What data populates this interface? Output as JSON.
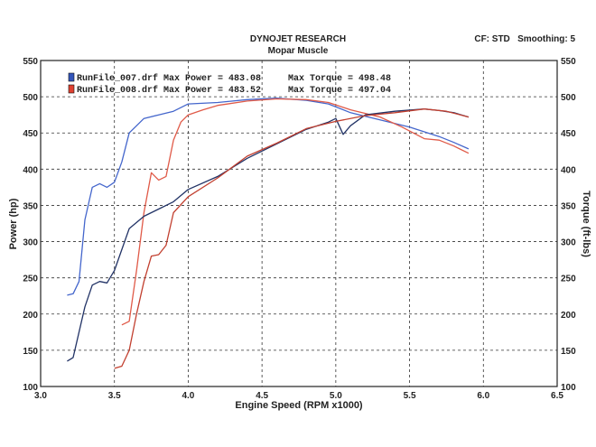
{
  "chart_data": {
    "type": "line",
    "title": "DYNOJET RESEARCH",
    "subtitle": "Mopar Muscle",
    "header_right": "CF: STD   Smoothing: 5",
    "xlabel": "Engine Speed (RPM x1000)",
    "ylabel_left": "Power (hp)",
    "ylabel_right": "Torque (ft-lbs)",
    "xlim": [
      3.0,
      6.5
    ],
    "ylim": [
      100,
      550
    ],
    "x_ticks": [
      "3.0",
      "3.5",
      "4.0",
      "4.5",
      "5.0",
      "5.5",
      "6.0",
      "6.5"
    ],
    "y_ticks": [
      "100",
      "150",
      "200",
      "250",
      "300",
      "350",
      "400",
      "450",
      "500",
      "550"
    ],
    "grid": "dashed",
    "legend": [
      {
        "label": "RunFile_007.drf Max Power = 483.08     Max Torque = 498.48",
        "color": "#3355bb"
      },
      {
        "label": "RunFile_008.drf Max Power = 483.52     Max Torque = 497.04",
        "color": "#e04030"
      }
    ],
    "series": [
      {
        "run": "007",
        "kind": "torque",
        "color": "#4466cc",
        "points": [
          [
            3.18,
            226
          ],
          [
            3.22,
            228
          ],
          [
            3.26,
            245
          ],
          [
            3.3,
            330
          ],
          [
            3.35,
            375
          ],
          [
            3.4,
            380
          ],
          [
            3.45,
            375
          ],
          [
            3.5,
            382
          ],
          [
            3.55,
            410
          ],
          [
            3.6,
            450
          ],
          [
            3.7,
            470
          ],
          [
            3.8,
            475
          ],
          [
            3.9,
            480
          ],
          [
            4.0,
            490
          ],
          [
            4.2,
            492
          ],
          [
            4.4,
            496
          ],
          [
            4.6,
            498
          ],
          [
            4.8,
            495
          ],
          [
            4.95,
            490
          ],
          [
            5.1,
            478
          ],
          [
            5.3,
            468
          ],
          [
            5.5,
            458
          ],
          [
            5.7,
            445
          ],
          [
            5.8,
            437
          ],
          [
            5.9,
            428
          ]
        ]
      },
      {
        "run": "008",
        "kind": "torque",
        "color": "#e05a48",
        "points": [
          [
            3.55,
            185
          ],
          [
            3.6,
            190
          ],
          [
            3.65,
            260
          ],
          [
            3.7,
            340
          ],
          [
            3.75,
            395
          ],
          [
            3.8,
            385
          ],
          [
            3.85,
            390
          ],
          [
            3.9,
            440
          ],
          [
            3.95,
            465
          ],
          [
            4.0,
            475
          ],
          [
            4.1,
            482
          ],
          [
            4.2,
            488
          ],
          [
            4.4,
            494
          ],
          [
            4.6,
            497
          ],
          [
            4.8,
            496
          ],
          [
            4.95,
            492
          ],
          [
            5.1,
            482
          ],
          [
            5.3,
            472
          ],
          [
            5.45,
            458
          ],
          [
            5.6,
            442
          ],
          [
            5.7,
            440
          ],
          [
            5.8,
            432
          ],
          [
            5.9,
            422
          ]
        ]
      },
      {
        "run": "007",
        "kind": "power",
        "color": "#223366",
        "points": [
          [
            3.18,
            135
          ],
          [
            3.22,
            140
          ],
          [
            3.3,
            210
          ],
          [
            3.35,
            240
          ],
          [
            3.4,
            245
          ],
          [
            3.45,
            243
          ],
          [
            3.5,
            260
          ],
          [
            3.6,
            318
          ],
          [
            3.7,
            335
          ],
          [
            3.8,
            345
          ],
          [
            3.9,
            355
          ],
          [
            4.0,
            372
          ],
          [
            4.2,
            390
          ],
          [
            4.4,
            415
          ],
          [
            4.6,
            435
          ],
          [
            4.8,
            455
          ],
          [
            4.95,
            465
          ],
          [
            5.0,
            470
          ],
          [
            5.05,
            448
          ],
          [
            5.1,
            460
          ],
          [
            5.2,
            475
          ],
          [
            5.4,
            480
          ],
          [
            5.6,
            483
          ],
          [
            5.7,
            481
          ],
          [
            5.8,
            478
          ],
          [
            5.9,
            472
          ]
        ]
      },
      {
        "run": "008",
        "kind": "power",
        "color": "#c24030",
        "points": [
          [
            3.5,
            125
          ],
          [
            3.55,
            128
          ],
          [
            3.6,
            150
          ],
          [
            3.65,
            200
          ],
          [
            3.7,
            245
          ],
          [
            3.75,
            280
          ],
          [
            3.8,
            282
          ],
          [
            3.85,
            295
          ],
          [
            3.9,
            340
          ],
          [
            4.0,
            362
          ],
          [
            4.2,
            388
          ],
          [
            4.4,
            418
          ],
          [
            4.6,
            436
          ],
          [
            4.8,
            456
          ],
          [
            5.0,
            466
          ],
          [
            5.2,
            474
          ],
          [
            5.4,
            478
          ],
          [
            5.6,
            483
          ],
          [
            5.75,
            480
          ],
          [
            5.9,
            472
          ]
        ]
      }
    ]
  }
}
